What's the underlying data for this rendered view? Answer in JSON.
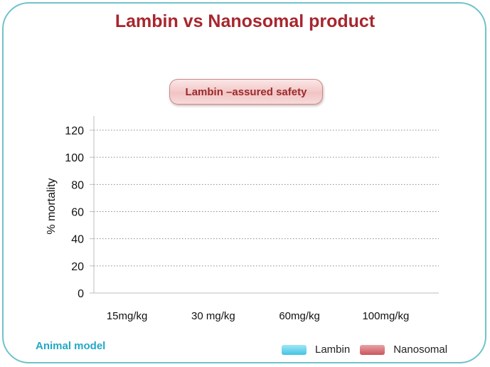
{
  "title": "Lambin vs Nanosomal product",
  "badge": "Lambin –assured safety",
  "footer_label": "Animal model",
  "colors": {
    "frame": "#6fc3c9",
    "title": "#a8262e",
    "lambin": "#43c4e4",
    "nanosomal": "#c9565b"
  },
  "legend": [
    {
      "label": "Lambin",
      "color": "#43c4e4"
    },
    {
      "label": "Nanosomal",
      "color": "#c9565b"
    }
  ],
  "chart_data": {
    "type": "bar",
    "categories": [
      "15mg/kg",
      "30 mg/kg",
      "60mg/kg",
      "100mg/kg"
    ],
    "yticks": [
      "0",
      "20",
      "40",
      "60",
      "80",
      "100",
      "120"
    ],
    "ylabel": "% mortality",
    "ylim": [
      0,
      120
    ],
    "grid": true,
    "legend_position": "bottom-right",
    "series": [
      {
        "name": "Lambin",
        "values": [
          0,
          0,
          0,
          0
        ]
      },
      {
        "name": "Nanosomal",
        "values": [
          0,
          0,
          0,
          0
        ]
      }
    ]
  }
}
